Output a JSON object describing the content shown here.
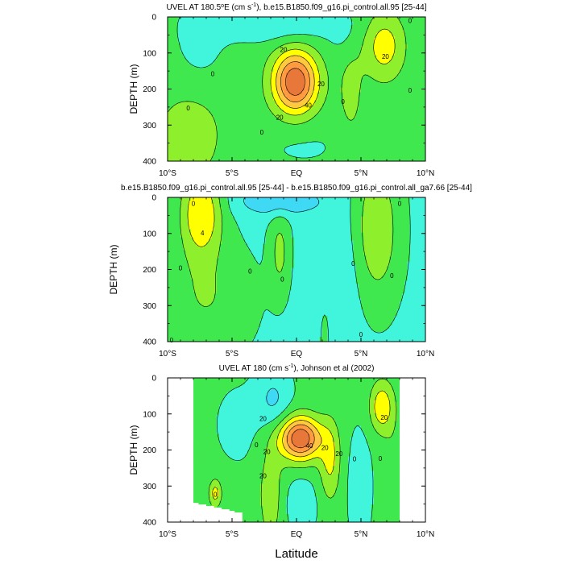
{
  "figure": {
    "xlabel": "Latitude",
    "colors": {
      "levels": [
        "#3fd9f5",
        "#40f5dc",
        "#40e84f",
        "#8ef02d",
        "#ffff00",
        "#ffc840",
        "#ff9a40",
        "#e8783a"
      ],
      "line": "#000000",
      "missing": "#ffffff"
    }
  },
  "chart_data": [
    {
      "type": "heatmap",
      "title_before": "UVEL AT 180.5",
      "title_deg": "o",
      "title_mid": "E (cm s",
      "title_sup": "-1",
      "title_after": "), b.e15.B1850.f09_g16.pi_control.all.95 [25-44]",
      "ylabel": "DEPTH (m)",
      "xlim": [
        -10,
        10
      ],
      "ylim": [
        400,
        0
      ],
      "y_reversed": true,
      "x_ticks": [
        -10,
        -5,
        0,
        5,
        10
      ],
      "x_tick_labels": [
        "10°S",
        "5°S",
        "EQ",
        "5°N",
        "10°N"
      ],
      "y_ticks": [
        0,
        100,
        200,
        300,
        400
      ],
      "y_tick_labels": [
        "0",
        "100",
        "200",
        "300",
        "400"
      ],
      "contour_levels": [
        -10,
        0,
        10,
        20,
        30,
        40,
        50,
        60
      ],
      "contour_labels": [
        {
          "text": "0",
          "x": -6.5,
          "y": 158
        },
        {
          "text": "0",
          "x": -8.4,
          "y": 252
        },
        {
          "text": "0",
          "x": -2.7,
          "y": 320
        },
        {
          "text": "0",
          "x": 3.6,
          "y": 235
        },
        {
          "text": "0",
          "x": 8.8,
          "y": 10
        },
        {
          "text": "0",
          "x": 8.8,
          "y": 203
        },
        {
          "text": "20",
          "x": -1.0,
          "y": 90
        },
        {
          "text": "20",
          "x": 1.9,
          "y": 185
        },
        {
          "text": "20",
          "x": -1.3,
          "y": 278
        },
        {
          "text": "40",
          "x": 0.9,
          "y": 245
        },
        {
          "text": "20",
          "x": 6.9,
          "y": 110
        }
      ]
    },
    {
      "type": "heatmap",
      "title_before": "b.e15.B1850.f09_g16.pi_control.all.95 [25-44] - b.e15.B1850.f09_g16.pi_control.all_ga7.66 [25-44]",
      "ylabel": "DEPTH (m)",
      "xlim": [
        -10,
        10
      ],
      "ylim": [
        400,
        0
      ],
      "y_reversed": true,
      "x_ticks": [
        -10,
        -5,
        0,
        5,
        10
      ],
      "x_tick_labels": [
        "10°S",
        "5°S",
        "EQ",
        "5°N",
        "10°N"
      ],
      "y_ticks": [
        0,
        100,
        200,
        300,
        400
      ],
      "y_tick_labels": [
        "0",
        "100",
        "200",
        "300",
        "400"
      ],
      "contour_levels": [
        -2,
        0,
        2,
        4
      ],
      "contour_labels": [
        {
          "text": "0",
          "x": -8.0,
          "y": 17
        },
        {
          "text": "0",
          "x": 8.0,
          "y": 17
        },
        {
          "text": "4",
          "x": -7.3,
          "y": 98
        },
        {
          "text": "0",
          "x": -9.0,
          "y": 195
        },
        {
          "text": "0",
          "x": -3.6,
          "y": 205
        },
        {
          "text": "0",
          "x": -1.1,
          "y": 227
        },
        {
          "text": "0",
          "x": 4.4,
          "y": 183
        },
        {
          "text": "0",
          "x": 7.4,
          "y": 217
        },
        {
          "text": "0",
          "x": 5.0,
          "y": 380
        },
        {
          "text": "0",
          "x": -9.7,
          "y": 395
        }
      ]
    },
    {
      "type": "heatmap",
      "title_before": "UVEL AT 180 (cm s",
      "title_sup": "-1",
      "title_after": "), Johnson et al (2002)",
      "ylabel": "DEPTH (m)",
      "xlim": [
        -10,
        10
      ],
      "ylim": [
        400,
        0
      ],
      "y_reversed": true,
      "x_ticks": [
        -10,
        -5,
        0,
        5,
        10
      ],
      "x_tick_labels": [
        "10°S",
        "5°S",
        "EQ",
        "5°N",
        "10°N"
      ],
      "y_ticks": [
        0,
        100,
        200,
        300,
        400
      ],
      "y_tick_labels": [
        "0",
        "100",
        "200",
        "300",
        "400"
      ],
      "data_extent_x": [
        -8,
        8
      ],
      "contour_levels": [
        -10,
        0,
        10,
        20,
        30,
        40,
        50,
        60
      ],
      "contour_labels": [
        {
          "text": "20",
          "x": -2.6,
          "y": 113
        },
        {
          "text": "20",
          "x": -2.3,
          "y": 205
        },
        {
          "text": "20",
          "x": -2.6,
          "y": 272
        },
        {
          "text": "40",
          "x": 1.0,
          "y": 188
        },
        {
          "text": "20",
          "x": 2.2,
          "y": 193
        },
        {
          "text": "20",
          "x": 3.3,
          "y": 210
        },
        {
          "text": "0",
          "x": 4.5,
          "y": 225
        },
        {
          "text": "0",
          "x": 6.5,
          "y": 224
        },
        {
          "text": "20",
          "x": 6.8,
          "y": 110
        },
        {
          "text": "0",
          "x": -3.1,
          "y": 185
        },
        {
          "text": "0",
          "x": -6.3,
          "y": 323
        }
      ]
    }
  ]
}
